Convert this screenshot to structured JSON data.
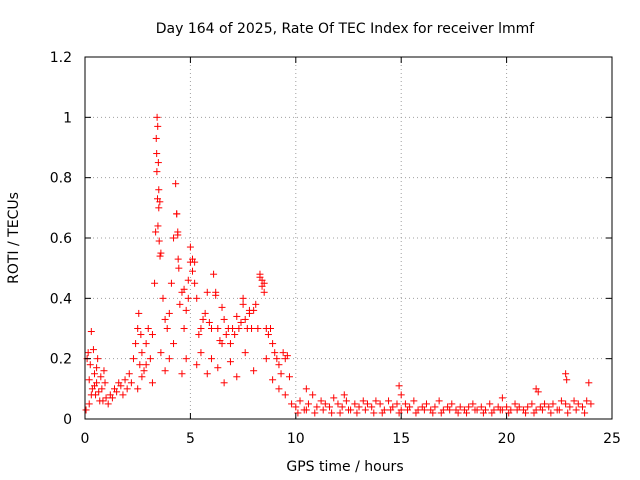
{
  "chart_data": {
    "type": "scatter",
    "title": "Day 164 of 2025, Rate Of TEC Index for receiver lmmf",
    "xlabel": "GPS time / hours",
    "ylabel": "ROTI / TECUs",
    "xlim": [
      0,
      25
    ],
    "ylim": [
      0,
      1.2
    ],
    "x_ticks": [
      0,
      5,
      10,
      15,
      20,
      25
    ],
    "x_tick_labels": [
      "0",
      "5",
      "10",
      "15",
      "20",
      "25"
    ],
    "y_ticks": [
      0,
      0.2,
      0.4,
      0.6,
      0.8,
      1.0,
      1.2
    ],
    "y_tick_labels": [
      "0",
      "0.2",
      "0.4",
      "0.6",
      "0.8",
      "1",
      "1.2"
    ],
    "grid": true,
    "marker": "plus",
    "color": "#ff0000",
    "series": [
      {
        "name": "ROTI",
        "x": [
          0.05,
          0.1,
          0.15,
          0.2,
          0.25,
          0.3,
          0.35,
          0.4,
          0.45,
          0.5,
          0.55,
          0.6,
          0.7,
          0.8,
          0.9,
          1.0,
          0.2,
          0.3,
          0.45,
          0.55,
          0.65,
          0.75,
          0.85,
          0.95,
          1.1,
          1.2,
          1.3,
          1.4,
          1.5,
          1.6,
          1.7,
          1.8,
          1.9,
          2.0,
          2.1,
          2.2,
          2.3,
          2.4,
          2.5,
          2.55,
          2.6,
          2.65,
          2.7,
          2.8,
          2.9,
          3.0,
          3.1,
          3.2,
          3.3,
          3.35,
          3.4,
          3.42,
          3.45,
          3.48,
          3.5,
          3.55,
          3.6,
          3.7,
          3.8,
          3.9,
          4.0,
          4.1,
          4.2,
          4.3,
          4.35,
          4.4,
          4.45,
          4.5,
          4.6,
          4.7,
          4.8,
          4.9,
          5.0,
          5.1,
          5.2,
          5.3,
          5.4,
          5.5,
          5.6,
          5.7,
          5.8,
          5.9,
          6.0,
          6.1,
          6.2,
          6.3,
          6.4,
          6.5,
          6.6,
          6.7,
          6.8,
          6.9,
          7.0,
          7.1,
          7.2,
          7.3,
          7.4,
          7.5,
          7.6,
          7.7,
          7.8,
          7.9,
          8.0,
          8.1,
          8.2,
          8.3,
          8.4,
          8.5,
          8.6,
          8.7,
          8.8,
          8.9,
          9.0,
          9.1,
          9.2,
          9.3,
          9.4,
          9.5,
          9.6,
          9.7,
          3.38,
          3.41,
          3.44,
          3.46,
          3.5,
          3.52,
          3.56,
          4.35,
          4.4,
          4.42,
          5.0,
          5.1,
          5.2,
          4.7,
          4.9,
          6.2,
          6.5,
          8.3,
          8.4,
          8.5,
          7.5,
          7.8,
          2.5,
          2.7,
          2.9,
          3.2,
          3.6,
          3.8,
          4.0,
          4.2,
          4.6,
          4.8,
          5.3,
          5.5,
          5.8,
          6.0,
          6.3,
          6.6,
          6.9,
          7.2,
          7.6,
          8.0,
          8.6,
          8.9,
          9.2,
          9.5,
          9.8,
          10.0,
          10.2,
          10.4,
          10.6,
          10.8,
          11.0,
          11.2,
          11.4,
          11.6,
          11.8,
          12.0,
          12.2,
          12.4,
          12.6,
          12.8,
          13.0,
          13.2,
          13.4,
          13.6,
          13.8,
          14.0,
          14.2,
          14.4,
          14.6,
          14.8,
          15.0,
          15.2,
          15.4,
          15.6,
          15.8,
          16.0,
          16.2,
          16.4,
          16.6,
          16.8,
          17.0,
          17.2,
          17.4,
          17.6,
          17.8,
          18.0,
          18.2,
          18.4,
          18.6,
          18.8,
          19.0,
          19.2,
          19.4,
          19.6,
          19.8,
          20.0,
          20.2,
          20.4,
          20.6,
          20.8,
          21.0,
          21.2,
          21.4,
          21.6,
          21.8,
          22.0,
          22.2,
          22.4,
          22.6,
          22.8,
          23.0,
          23.2,
          23.4,
          23.6,
          23.8,
          24.0,
          10.1,
          10.5,
          10.9,
          11.3,
          11.7,
          12.1,
          12.5,
          12.9,
          13.3,
          13.7,
          14.1,
          14.5,
          14.9,
          15.3,
          15.7,
          16.1,
          16.5,
          16.9,
          17.3,
          17.7,
          18.1,
          18.5,
          18.9,
          19.3,
          19.7,
          20.1,
          20.5,
          20.9,
          21.3,
          21.7,
          22.1,
          22.5,
          22.9,
          23.3,
          23.7,
          14.9,
          15.0,
          22.8,
          22.85,
          23.9,
          21.4,
          21.5,
          10.5,
          12.3,
          19.8
        ],
        "y": [
          0.03,
          0.2,
          0.22,
          0.05,
          0.18,
          0.29,
          0.1,
          0.23,
          0.15,
          0.08,
          0.12,
          0.2,
          0.06,
          0.1,
          0.16,
          0.07,
          0.13,
          0.08,
          0.11,
          0.17,
          0.09,
          0.14,
          0.06,
          0.12,
          0.05,
          0.08,
          0.07,
          0.1,
          0.09,
          0.12,
          0.11,
          0.08,
          0.13,
          0.1,
          0.15,
          0.12,
          0.2,
          0.25,
          0.3,
          0.35,
          0.18,
          0.28,
          0.22,
          0.16,
          0.25,
          0.3,
          0.2,
          0.28,
          0.45,
          0.62,
          0.88,
          1.0,
          0.97,
          0.85,
          0.76,
          0.72,
          0.55,
          0.4,
          0.33,
          0.3,
          0.35,
          0.45,
          0.6,
          0.78,
          0.68,
          0.61,
          0.5,
          0.38,
          0.42,
          0.3,
          0.36,
          0.46,
          0.57,
          0.53,
          0.52,
          0.4,
          0.28,
          0.3,
          0.33,
          0.35,
          0.42,
          0.32,
          0.3,
          0.48,
          0.42,
          0.3,
          0.26,
          0.25,
          0.33,
          0.28,
          0.3,
          0.25,
          0.3,
          0.28,
          0.34,
          0.3,
          0.32,
          0.38,
          0.33,
          0.3,
          0.35,
          0.3,
          0.36,
          0.38,
          0.3,
          0.48,
          0.46,
          0.45,
          0.3,
          0.28,
          0.3,
          0.25,
          0.22,
          0.2,
          0.18,
          0.15,
          0.22,
          0.2,
          0.21,
          0.14,
          0.93,
          0.82,
          0.73,
          0.64,
          0.7,
          0.59,
          0.54,
          0.68,
          0.62,
          0.53,
          0.52,
          0.49,
          0.45,
          0.43,
          0.4,
          0.41,
          0.37,
          0.47,
          0.44,
          0.42,
          0.4,
          0.36,
          0.1,
          0.14,
          0.18,
          0.12,
          0.22,
          0.16,
          0.2,
          0.25,
          0.15,
          0.2,
          0.18,
          0.22,
          0.15,
          0.2,
          0.17,
          0.12,
          0.19,
          0.14,
          0.22,
          0.16,
          0.2,
          0.13,
          0.1,
          0.08,
          0.05,
          0.04,
          0.06,
          0.03,
          0.05,
          0.08,
          0.04,
          0.06,
          0.05,
          0.04,
          0.07,
          0.05,
          0.04,
          0.06,
          0.03,
          0.05,
          0.04,
          0.06,
          0.05,
          0.04,
          0.06,
          0.05,
          0.03,
          0.06,
          0.04,
          0.05,
          0.03,
          0.05,
          0.04,
          0.06,
          0.03,
          0.04,
          0.05,
          0.03,
          0.04,
          0.06,
          0.03,
          0.04,
          0.05,
          0.03,
          0.04,
          0.03,
          0.04,
          0.05,
          0.03,
          0.04,
          0.03,
          0.05,
          0.03,
          0.04,
          0.03,
          0.04,
          0.03,
          0.05,
          0.04,
          0.03,
          0.04,
          0.05,
          0.03,
          0.04,
          0.05,
          0.04,
          0.05,
          0.03,
          0.06,
          0.05,
          0.04,
          0.06,
          0.05,
          0.04,
          0.06,
          0.05,
          0.02,
          0.03,
          0.02,
          0.03,
          0.02,
          0.02,
          0.03,
          0.02,
          0.03,
          0.02,
          0.02,
          0.03,
          0.02,
          0.03,
          0.02,
          0.03,
          0.02,
          0.02,
          0.03,
          0.02,
          0.02,
          0.03,
          0.02,
          0.02,
          0.03,
          0.02,
          0.03,
          0.02,
          0.02,
          0.03,
          0.02,
          0.03,
          0.02,
          0.03,
          0.02,
          0.11,
          0.08,
          0.15,
          0.13,
          0.12,
          0.1,
          0.09,
          0.1,
          0.08,
          0.07
        ]
      }
    ]
  }
}
